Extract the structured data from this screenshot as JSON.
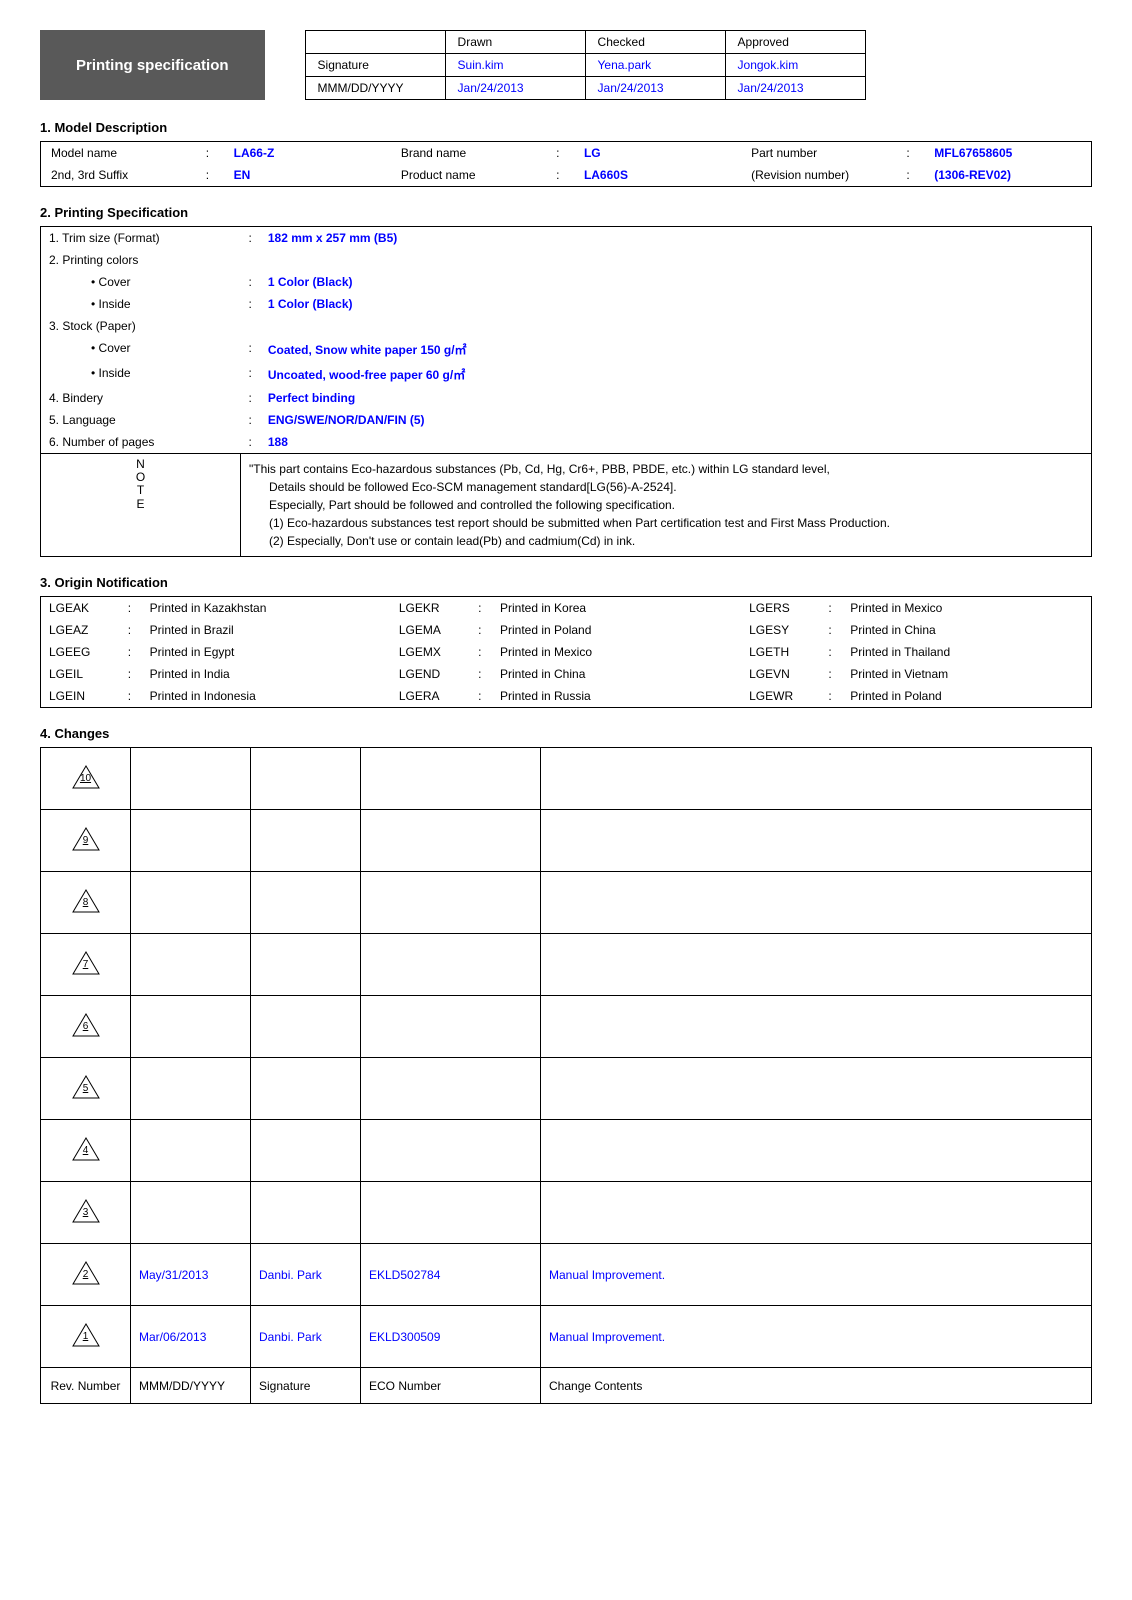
{
  "title": "Printing specification",
  "header": {
    "cols": [
      "Drawn",
      "Checked",
      "Approved"
    ],
    "rows": [
      {
        "label": "Signature",
        "vals": [
          "Suin.kim",
          "Yena.park",
          "Jongok.kim"
        ]
      },
      {
        "label": "MMM/DD/YYYY",
        "vals": [
          "Jan/24/2013",
          "Jan/24/2013",
          "Jan/24/2013"
        ]
      }
    ],
    "value_color": "#0000ff"
  },
  "model_section": {
    "heading": "1. Model Description",
    "rows": [
      [
        {
          "label": "Model name",
          "value": "LA66-Z"
        },
        {
          "label": "Brand name",
          "value": "LG"
        },
        {
          "label": "Part number",
          "value": "MFL67658605"
        }
      ],
      [
        {
          "label": "2nd, 3rd Suffix",
          "value": "EN"
        },
        {
          "label": "Product name",
          "value": "LA660S"
        },
        {
          "label": "(Revision number)",
          "value": "(1306-REV02)"
        }
      ]
    ],
    "value_color": "#0000ff"
  },
  "printing_section": {
    "heading": "2. Printing Specification",
    "items": [
      {
        "label": "1. Trim size (Format)",
        "value": "182 mm x 257 mm (B5)",
        "indent": false
      },
      {
        "label": "2. Printing colors",
        "value": "",
        "indent": false
      },
      {
        "label": "• Cover",
        "value": "1 Color (Black)",
        "indent": true
      },
      {
        "label": "• Inside",
        "value": "1 Color (Black)",
        "indent": true
      },
      {
        "label": "3. Stock (Paper)",
        "value": "",
        "indent": false
      },
      {
        "label": "• Cover",
        "value": "Coated, Snow white paper 150 g/㎡",
        "indent": true
      },
      {
        "label": "• Inside",
        "value": "Uncoated, wood-free paper 60 g/㎡",
        "indent": true
      },
      {
        "label": "4. Bindery",
        "value": "Perfect binding",
        "indent": false
      },
      {
        "label": "5. Language",
        "value": "ENG/SWE/NOR/DAN/FIN (5)",
        "indent": false
      },
      {
        "label": "6. Number of pages",
        "value": "188",
        "indent": false
      }
    ],
    "value_color": "#0000ff",
    "note_label": "NOTE",
    "note_lines": [
      "\"This part contains Eco-hazardous substances (Pb, Cd, Hg, Cr6+, PBB, PBDE, etc.) within LG standard level,",
      "Details should be followed Eco-SCM management standard[LG(56)-A-2524].",
      "Especially, Part should be followed and controlled the following specification.",
      "(1) Eco-hazardous substances test report should be submitted when Part certification test and First Mass Production.",
      "(2) Especially, Don't use or contain lead(Pb) and cadmium(Cd) in ink."
    ]
  },
  "origin_section": {
    "heading": "3. Origin Notification",
    "rows": [
      [
        {
          "code": "LGEAK",
          "text": "Printed in Kazakhstan"
        },
        {
          "code": "LGEKR",
          "text": "Printed in Korea"
        },
        {
          "code": "LGERS",
          "text": "Printed in Mexico"
        }
      ],
      [
        {
          "code": "LGEAZ",
          "text": "Printed in Brazil"
        },
        {
          "code": "LGEMA",
          "text": "Printed in Poland"
        },
        {
          "code": "LGESY",
          "text": "Printed in China"
        }
      ],
      [
        {
          "code": "LGEEG",
          "text": "Printed in Egypt"
        },
        {
          "code": "LGEMX",
          "text": "Printed in Mexico"
        },
        {
          "code": "LGETH",
          "text": "Printed in Thailand"
        }
      ],
      [
        {
          "code": "LGEIL",
          "text": "Printed in India"
        },
        {
          "code": "LGEND",
          "text": "Printed in China"
        },
        {
          "code": "LGEVN",
          "text": "Printed in Vietnam"
        }
      ],
      [
        {
          "code": "LGEIN",
          "text": "Printed in Indonesia"
        },
        {
          "code": "LGERA",
          "text": "Printed in Russia"
        },
        {
          "code": "LGEWR",
          "text": "Printed in Poland"
        }
      ]
    ]
  },
  "changes_section": {
    "heading": "4. Changes",
    "headers": [
      "Rev. Number",
      "MMM/DD/YYYY",
      "Signature",
      "ECO Number",
      "Change Contents"
    ],
    "rows": [
      {
        "num": "10",
        "date": "",
        "sig": "",
        "eco": "",
        "contents": ""
      },
      {
        "num": "9",
        "date": "",
        "sig": "",
        "eco": "",
        "contents": ""
      },
      {
        "num": "8",
        "date": "",
        "sig": "",
        "eco": "",
        "contents": ""
      },
      {
        "num": "7",
        "date": "",
        "sig": "",
        "eco": "",
        "contents": ""
      },
      {
        "num": "6",
        "date": "",
        "sig": "",
        "eco": "",
        "contents": ""
      },
      {
        "num": "5",
        "date": "",
        "sig": "",
        "eco": "",
        "contents": ""
      },
      {
        "num": "4",
        "date": "",
        "sig": "",
        "eco": "",
        "contents": ""
      },
      {
        "num": "3",
        "date": "",
        "sig": "",
        "eco": "",
        "contents": ""
      },
      {
        "num": "2",
        "date": "May/31/2013",
        "sig": "Danbi. Park",
        "eco": "EKLD502784",
        "contents": "Manual Improvement."
      },
      {
        "num": "1",
        "date": "Mar/06/2013",
        "sig": "Danbi. Park",
        "eco": "EKLD300509",
        "contents": "Manual Improvement."
      }
    ],
    "value_color": "#0000ff"
  }
}
